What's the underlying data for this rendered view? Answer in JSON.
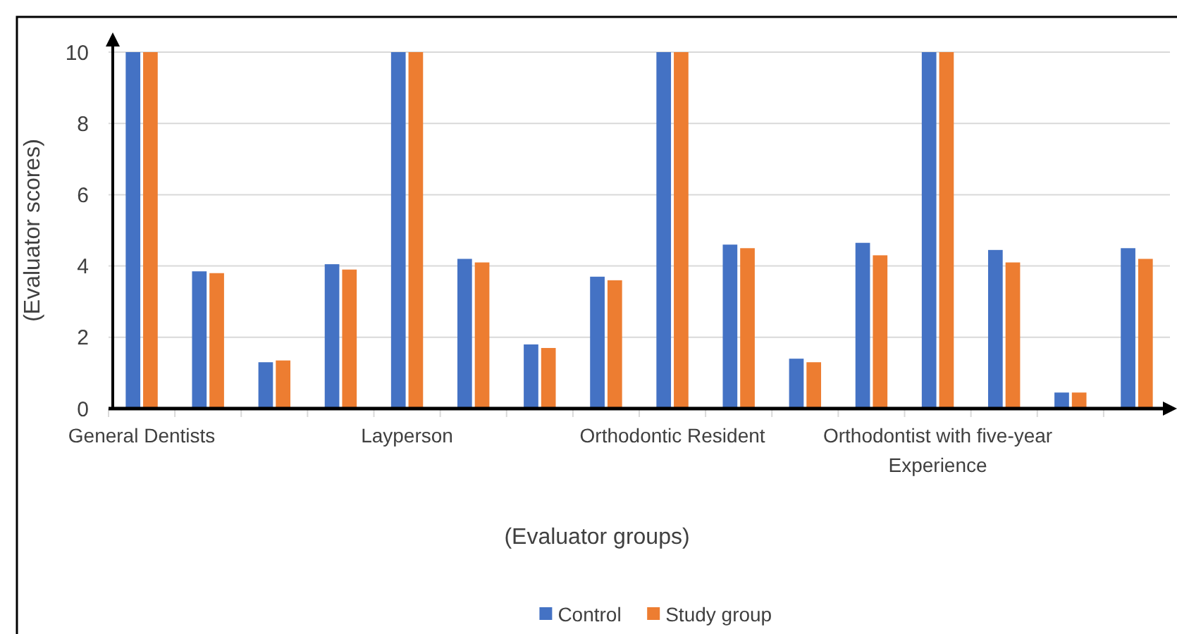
{
  "chart_data": {
    "type": "bar",
    "xlabel": "(Evaluator groups)",
    "ylabel": "(Evaluator scores)",
    "categories": [
      "General Dentists",
      null,
      null,
      null,
      "Layperson",
      null,
      null,
      null,
      "Orthodontic Resident",
      null,
      null,
      null,
      "Orthodontist with five-year Experience",
      null,
      null,
      null
    ],
    "series": [
      {
        "name": "Control",
        "color": "#4472c4",
        "values": [
          10,
          3.85,
          1.3,
          4.05,
          10,
          4.2,
          1.8,
          3.7,
          10,
          4.6,
          1.4,
          4.65,
          10,
          4.45,
          0.45,
          4.5
        ]
      },
      {
        "name": "Study group",
        "color": "#ed7d31",
        "values": [
          10,
          3.8,
          1.35,
          3.9,
          10,
          4.1,
          1.7,
          3.6,
          10,
          4.5,
          1.3,
          4.3,
          10,
          4.1,
          0.45,
          4.2
        ]
      }
    ],
    "ylim": [
      0,
      10
    ],
    "yticks": [
      0,
      2,
      4,
      6,
      8,
      10
    ],
    "grid": "y",
    "legend": "bottom"
  }
}
